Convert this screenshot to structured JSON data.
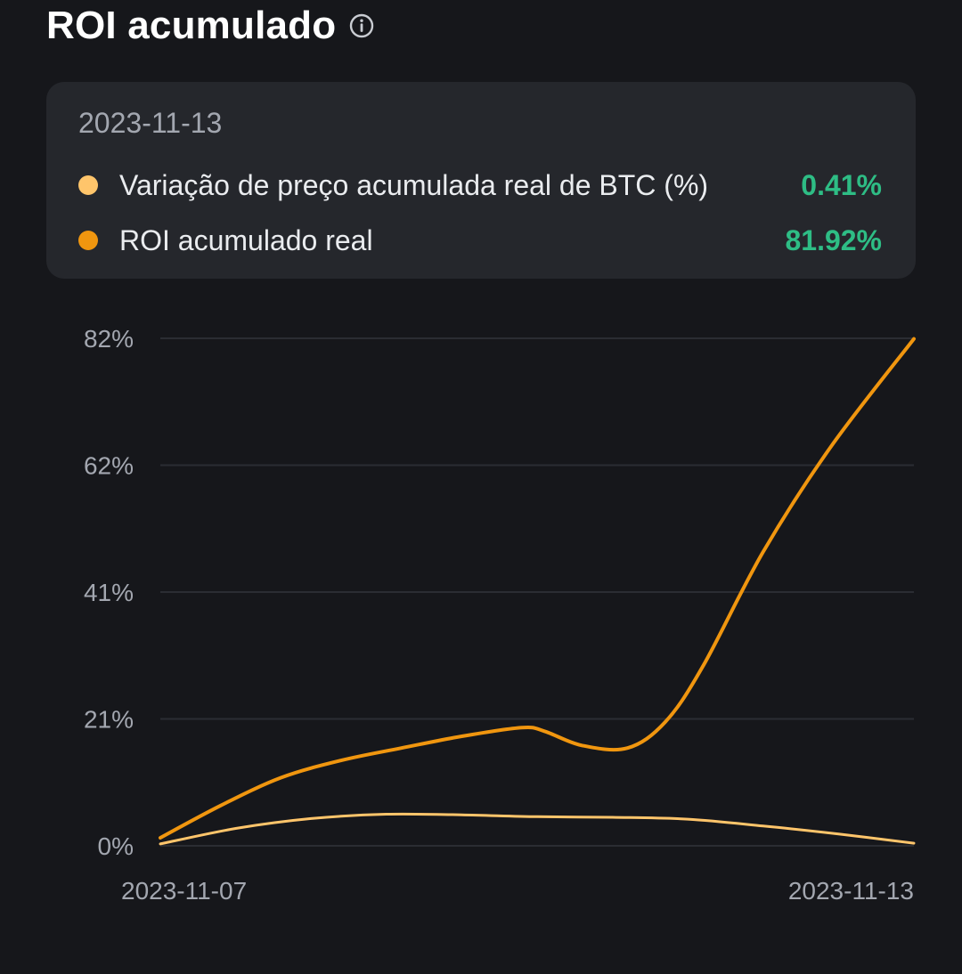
{
  "header": {
    "title": "ROI acumulado",
    "info_icon": "info-circle-icon"
  },
  "tooltip": {
    "date": "2023-11-13",
    "rows": [
      {
        "label": "Variação de preço acumulada real de BTC (%)",
        "value": "0.41%",
        "color": "#ffc56b"
      },
      {
        "label": "ROI acumulado real",
        "value": "81.92%",
        "color": "#f0960f"
      }
    ]
  },
  "colors": {
    "positive": "#2ebd85",
    "btc_line": "#ffc56b",
    "roi_line": "#f0960f",
    "grid": "#2b2d33"
  },
  "chart_data": {
    "type": "line",
    "x_labels": [
      "2023-11-07",
      "2023-11-13"
    ],
    "y_ticks": [
      {
        "value": 0,
        "label": "0%"
      },
      {
        "value": 20.5,
        "label": "21%"
      },
      {
        "value": 41,
        "label": "41%"
      },
      {
        "value": 61.5,
        "label": "62%"
      },
      {
        "value": 82,
        "label": "82%"
      }
    ],
    "ylim": [
      0,
      82
    ],
    "grid": true,
    "series": [
      {
        "name": "ROI acumulado real",
        "color": "#f0960f",
        "points": [
          [
            0.0,
            1.3
          ],
          [
            0.08,
            6.5
          ],
          [
            0.16,
            11.0
          ],
          [
            0.24,
            13.8
          ],
          [
            0.32,
            15.8
          ],
          [
            0.4,
            17.7
          ],
          [
            0.48,
            19.1
          ],
          [
            0.51,
            18.5
          ],
          [
            0.56,
            16.2
          ],
          [
            0.62,
            15.8
          ],
          [
            0.67,
            20.0
          ],
          [
            0.72,
            29.0
          ],
          [
            0.8,
            47.5
          ],
          [
            0.89,
            64.5
          ],
          [
            1.0,
            81.92
          ]
        ]
      },
      {
        "name": "Variação de preço acumulada real de BTC (%)",
        "color": "#ffc56b",
        "points": [
          [
            0.0,
            0.3
          ],
          [
            0.1,
            2.8
          ],
          [
            0.2,
            4.4
          ],
          [
            0.3,
            5.1
          ],
          [
            0.4,
            5.0
          ],
          [
            0.5,
            4.7
          ],
          [
            0.6,
            4.6
          ],
          [
            0.7,
            4.3
          ],
          [
            0.8,
            3.2
          ],
          [
            0.9,
            1.9
          ],
          [
            1.0,
            0.41
          ]
        ]
      }
    ]
  }
}
